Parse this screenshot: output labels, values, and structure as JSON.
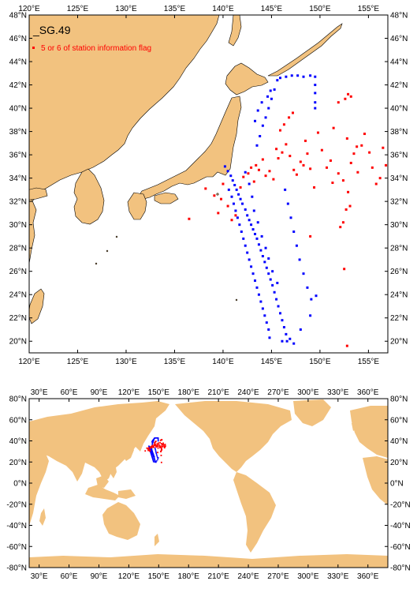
{
  "title": "_SG.49",
  "legend": {
    "label": "5 or 6 of station information flag",
    "color": "#ff0000"
  },
  "colors": {
    "land": "#f2c27f",
    "ocean": "#ffffff",
    "flagged": "#ff0000",
    "normal": "#0000ff"
  },
  "top_map": {
    "lon_range": [
      120,
      157
    ],
    "lat_range": [
      19,
      48
    ],
    "lon_ticks": [
      "120°E",
      "125°E",
      "130°E",
      "135°E",
      "140°E",
      "145°E",
      "150°E",
      "155°E"
    ],
    "lon_tick_values": [
      120,
      125,
      130,
      135,
      140,
      145,
      150,
      155
    ],
    "lat_ticks": [
      "20°N",
      "22°N",
      "24°N",
      "26°N",
      "28°N",
      "30°N",
      "32°N",
      "34°N",
      "36°N",
      "38°N",
      "40°N",
      "42°N",
      "44°N",
      "46°N",
      "48°N"
    ],
    "lat_tick_values": [
      20,
      22,
      24,
      26,
      28,
      30,
      32,
      34,
      36,
      38,
      40,
      42,
      44,
      46,
      48
    ]
  },
  "bottom_map": {
    "lon_range": [
      20,
      380
    ],
    "lat_range": [
      -80,
      80
    ],
    "lon_ticks": [
      "30°E",
      "60°E",
      "90°E",
      "120°E",
      "150°E",
      "180°E",
      "210°E",
      "240°E",
      "270°E",
      "300°E",
      "330°E",
      "360°E"
    ],
    "lon_tick_values": [
      30,
      60,
      90,
      120,
      150,
      180,
      210,
      240,
      270,
      300,
      330,
      360
    ],
    "lat_ticks": [
      "80°N",
      "60°N",
      "40°N",
      "20°N",
      "0°N",
      "-20°N",
      "-40°N",
      "-60°N",
      "-80°N"
    ],
    "lat_tick_values": [
      80,
      60,
      40,
      20,
      0,
      -20,
      -40,
      -60,
      -80
    ]
  },
  "stations": {
    "blue": [
      [
        140.2,
        35.0
      ],
      [
        140.5,
        34.6
      ],
      [
        140.8,
        34.2
      ],
      [
        141.0,
        33.8
      ],
      [
        141.2,
        33.4
      ],
      [
        141.4,
        33.0
      ],
      [
        141.6,
        32.6
      ],
      [
        141.8,
        32.2
      ],
      [
        142.0,
        31.8
      ],
      [
        142.3,
        31.3
      ],
      [
        142.5,
        30.8
      ],
      [
        142.7,
        30.4
      ],
      [
        142.9,
        30.0
      ],
      [
        143.1,
        29.6
      ],
      [
        143.3,
        29.2
      ],
      [
        143.5,
        28.8
      ],
      [
        143.7,
        28.3
      ],
      [
        143.9,
        27.8
      ],
      [
        144.1,
        27.3
      ],
      [
        144.3,
        26.8
      ],
      [
        144.5,
        26.3
      ],
      [
        144.7,
        25.8
      ],
      [
        144.9,
        25.3
      ],
      [
        145.1,
        24.8
      ],
      [
        145.3,
        24.2
      ],
      [
        145.5,
        23.6
      ],
      [
        145.7,
        23.0
      ],
      [
        145.9,
        22.4
      ],
      [
        146.1,
        21.8
      ],
      [
        146.3,
        21.2
      ],
      [
        146.5,
        20.6
      ],
      [
        146.6,
        20.0
      ],
      [
        140.6,
        33.0
      ],
      [
        140.9,
        32.4
      ],
      [
        141.1,
        31.8
      ],
      [
        141.3,
        31.2
      ],
      [
        141.5,
        30.6
      ],
      [
        141.7,
        30.0
      ],
      [
        141.9,
        29.4
      ],
      [
        142.1,
        28.8
      ],
      [
        142.3,
        28.2
      ],
      [
        142.5,
        27.6
      ],
      [
        142.7,
        27.0
      ],
      [
        142.9,
        26.4
      ],
      [
        143.1,
        25.8
      ],
      [
        143.3,
        25.2
      ],
      [
        143.5,
        24.6
      ],
      [
        143.7,
        24.0
      ],
      [
        143.9,
        23.4
      ],
      [
        144.1,
        22.8
      ],
      [
        144.3,
        22.2
      ],
      [
        144.5,
        21.6
      ],
      [
        144.7,
        21.0
      ],
      [
        144.8,
        20.3
      ],
      [
        146.4,
        33.0
      ],
      [
        146.7,
        31.8
      ],
      [
        147.0,
        30.6
      ],
      [
        147.3,
        29.4
      ],
      [
        147.6,
        28.2
      ],
      [
        147.9,
        27.0
      ],
      [
        148.3,
        25.8
      ],
      [
        148.7,
        24.6
      ],
      [
        149.1,
        23.6
      ],
      [
        149.6,
        23.9
      ],
      [
        149.0,
        22.2
      ],
      [
        148.0,
        21.0
      ],
      [
        147.3,
        19.8
      ],
      [
        146.9,
        20.2
      ],
      [
        146.1,
        20.0
      ],
      [
        142.3,
        34.5
      ],
      [
        142.7,
        33.5
      ],
      [
        143.0,
        32.4
      ],
      [
        143.2,
        31.2
      ],
      [
        143.6,
        30.2
      ],
      [
        144.0,
        29.0
      ],
      [
        144.4,
        28.0
      ],
      [
        144.7,
        27.1
      ],
      [
        145.1,
        26.0
      ],
      [
        145.6,
        25.0
      ],
      [
        143.5,
        36.8
      ],
      [
        143.8,
        37.6
      ],
      [
        144.1,
        38.5
      ],
      [
        144.4,
        39.2
      ],
      [
        144.7,
        40.0
      ],
      [
        145.0,
        40.8
      ],
      [
        145.3,
        41.6
      ],
      [
        145.6,
        42.4
      ],
      [
        145.9,
        42.6
      ],
      [
        146.5,
        42.7
      ],
      [
        147.1,
        42.8
      ],
      [
        147.7,
        42.8
      ],
      [
        148.3,
        42.7
      ],
      [
        149.0,
        42.8
      ],
      [
        149.5,
        42.7
      ],
      [
        149.5,
        42.0
      ],
      [
        149.5,
        41.3
      ],
      [
        149.5,
        40.5
      ],
      [
        149.5,
        40.0
      ],
      [
        144.9,
        41.5
      ],
      [
        144.6,
        41.0
      ],
      [
        144.0,
        40.5
      ],
      [
        143.6,
        39.8
      ],
      [
        143.3,
        38.9
      ]
    ],
    "red": [
      [
        136.5,
        30.5
      ],
      [
        138.2,
        33.1
      ],
      [
        139.1,
        32.5
      ],
      [
        139.5,
        31.0
      ],
      [
        139.8,
        32.2
      ],
      [
        140.0,
        33.5
      ],
      [
        140.5,
        31.6
      ],
      [
        140.9,
        30.4
      ],
      [
        141.3,
        30.8
      ],
      [
        141.8,
        33.2
      ],
      [
        142.1,
        34.1
      ],
      [
        142.6,
        34.4
      ],
      [
        142.9,
        34.9
      ],
      [
        143.4,
        35.1
      ],
      [
        143.7,
        34.7
      ],
      [
        144.1,
        35.6
      ],
      [
        144.4,
        34.2
      ],
      [
        144.8,
        34.6
      ],
      [
        145.2,
        33.9
      ],
      [
        145.7,
        35.7
      ],
      [
        146.1,
        36.2
      ],
      [
        146.5,
        36.9
      ],
      [
        146.9,
        35.9
      ],
      [
        147.3,
        34.7
      ],
      [
        147.6,
        34.3
      ],
      [
        148.0,
        35.4
      ],
      [
        148.3,
        35.1
      ],
      [
        148.7,
        36.1
      ],
      [
        149.0,
        34.8
      ],
      [
        149.4,
        33.2
      ],
      [
        149.8,
        37.9
      ],
      [
        150.2,
        36.4
      ],
      [
        150.7,
        34.9
      ],
      [
        151.1,
        35.5
      ],
      [
        151.4,
        38.3
      ],
      [
        151.9,
        34.4
      ],
      [
        152.4,
        33.8
      ],
      [
        152.8,
        37.4
      ],
      [
        153.2,
        35.3
      ],
      [
        153.5,
        36.1
      ],
      [
        153.9,
        34.5
      ],
      [
        154.3,
        36.8
      ],
      [
        154.6,
        37.8
      ],
      [
        155.1,
        36.2
      ],
      [
        155.4,
        34.9
      ],
      [
        155.8,
        33.5
      ],
      [
        156.2,
        34.0
      ],
      [
        156.5,
        36.6
      ],
      [
        156.8,
        35.1
      ],
      [
        152.9,
        41.2
      ],
      [
        153.2,
        41.0
      ],
      [
        152.6,
        40.8
      ],
      [
        151.9,
        40.5
      ],
      [
        152.1,
        29.8
      ],
      [
        152.4,
        30.2
      ],
      [
        152.7,
        31.3
      ],
      [
        152.9,
        32.8
      ],
      [
        153.1,
        31.6
      ],
      [
        149.0,
        29.0
      ],
      [
        147.2,
        39.6
      ],
      [
        146.8,
        39.2
      ],
      [
        146.3,
        38.6
      ],
      [
        145.9,
        38.1
      ],
      [
        145.5,
        36.5
      ],
      [
        143.2,
        33.7
      ],
      [
        152.5,
        26.2
      ],
      [
        148.5,
        37.2
      ],
      [
        151.3,
        33.6
      ],
      [
        153.8,
        36.7
      ],
      [
        152.8,
        19.6
      ]
    ]
  }
}
